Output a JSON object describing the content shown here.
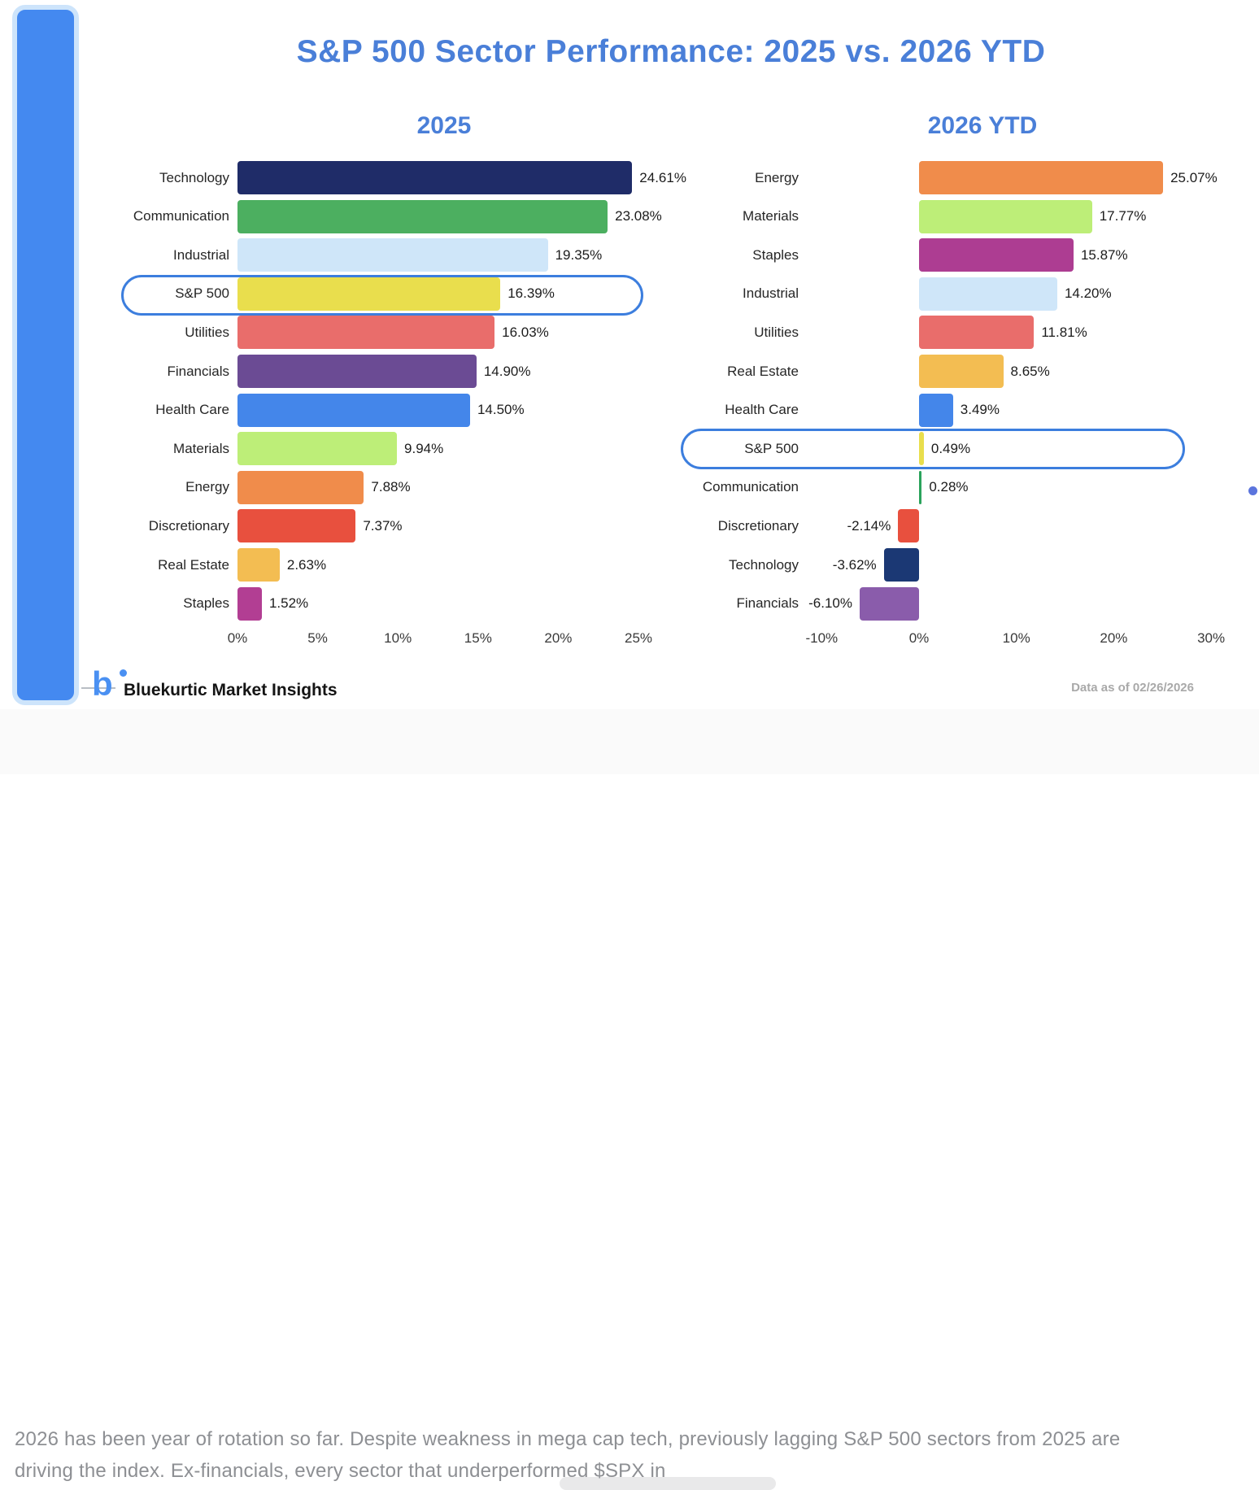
{
  "title": "S&P 500 Sector Performance: 2025 vs. 2026 YTD",
  "footer": {
    "logo_glyph": "b",
    "brand": "Bluekurtic Market Insights",
    "data_as_of": "Data as of 02/26/2026"
  },
  "caption": {
    "line1": "2026 has been year of rotation so far. Despite weakness in mega cap tech,  previously lagging S&P 500 sectors from 2025 are",
    "line2": "driving the index.  Ex-financials, every sector that underperformed $SPX in"
  },
  "colors": {
    "title_blue": "#4a7fd8",
    "accent_bar_fill": "#4489f0",
    "accent_bar_border": "#cde4fb",
    "highlight_border": "#3c7ede"
  },
  "chart_data": [
    {
      "type": "bar",
      "orientation": "horizontal",
      "title": "2025",
      "categories": [
        "Technology",
        "Communication",
        "Industrial",
        "S&P 500",
        "Utilities",
        "Financials",
        "Health Care",
        "Materials",
        "Energy",
        "Discretionary",
        "Real Estate",
        "Staples"
      ],
      "values": [
        24.61,
        23.08,
        19.35,
        16.39,
        16.03,
        14.9,
        14.5,
        9.94,
        7.88,
        7.37,
        2.63,
        1.52
      ],
      "value_labels": [
        "24.61%",
        "23.08%",
        "19.35%",
        "16.39%",
        "16.03%",
        "14.90%",
        "14.50%",
        "9.94%",
        "7.88%",
        "7.37%",
        "2.63%",
        "1.52%"
      ],
      "bar_colors": [
        "#1f2c68",
        "#4caf60",
        "#cfe6f9",
        "#e9de4d",
        "#e96d6b",
        "#6b4b94",
        "#4486ea",
        "#bdee78",
        "#f08c4b",
        "#e8503e",
        "#f3bd52",
        "#b23e93"
      ],
      "highlight_category": "S&P 500",
      "xlim": [
        0,
        25
      ],
      "ticks": [
        {
          "label": "0%",
          "value": 0
        },
        {
          "label": "5%",
          "value": 5
        },
        {
          "label": "10%",
          "value": 10
        },
        {
          "label": "15%",
          "value": 15
        },
        {
          "label": "20%",
          "value": 20
        },
        {
          "label": "25%",
          "value": 25
        }
      ],
      "grid": false,
      "legend": false
    },
    {
      "type": "bar",
      "orientation": "horizontal",
      "title": "2026 YTD",
      "categories": [
        "Energy",
        "Materials",
        "Staples",
        "Industrial",
        "Utilities",
        "Real Estate",
        "Health Care",
        "S&P 500",
        "Communication",
        "Discretionary",
        "Technology",
        "Financials"
      ],
      "values": [
        25.07,
        17.77,
        15.87,
        14.2,
        11.81,
        8.65,
        3.49,
        0.49,
        0.28,
        -2.14,
        -3.62,
        -6.1
      ],
      "value_labels": [
        "25.07%",
        "17.77%",
        "15.87%",
        "14.20%",
        "11.81%",
        "8.65%",
        "3.49%",
        "0.49%",
        "0.28%",
        "-2.14%",
        "-3.62%",
        "-6.10%"
      ],
      "bar_colors": [
        "#f08c4b",
        "#bdee78",
        "#ad3d92",
        "#cfe6f9",
        "#e96d6b",
        "#f3bd52",
        "#4486ea",
        "#e9de4d",
        "#2ba35c",
        "#e8503e",
        "#1b3874",
        "#8a5cab"
      ],
      "highlight_category": "S&P 500",
      "xlim": [
        -10,
        30
      ],
      "ticks": [
        {
          "label": "-10%",
          "value": -10
        },
        {
          "label": "0%",
          "value": 0
        },
        {
          "label": "10%",
          "value": 10
        },
        {
          "label": "20%",
          "value": 20
        },
        {
          "label": "30%",
          "value": 30
        }
      ],
      "grid": false,
      "legend": false
    }
  ]
}
